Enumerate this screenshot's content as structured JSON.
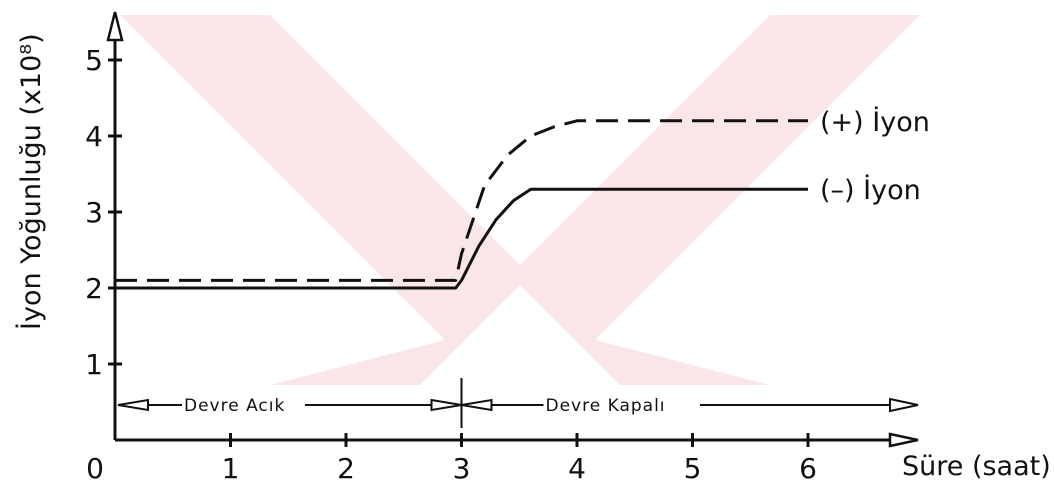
{
  "chart_data": {
    "type": "line",
    "xlabel": "Süre (saat)",
    "ylabel": "İyon Yoğunluğu (x10⁸)",
    "xlim": [
      0,
      7
    ],
    "ylim": [
      0,
      6
    ],
    "x_ticks": [
      "0",
      "1",
      "2",
      "3",
      "4",
      "5",
      "6"
    ],
    "y_ticks": [
      "1",
      "2",
      "3",
      "4",
      "5"
    ],
    "series": [
      {
        "name": "(+) İyon",
        "style": "dashed",
        "x": [
          0,
          2.95,
          3.0,
          3.2,
          3.4,
          3.6,
          3.8,
          4.0,
          4.2,
          6.0
        ],
        "y": [
          2.1,
          2.1,
          2.45,
          3.35,
          3.75,
          4.0,
          4.12,
          4.2,
          4.2,
          4.2
        ]
      },
      {
        "name": "(–) İyon",
        "style": "solid",
        "x": [
          0,
          2.95,
          3.0,
          3.15,
          3.3,
          3.45,
          3.6,
          6.0
        ],
        "y": [
          2.0,
          2.0,
          2.1,
          2.55,
          2.9,
          3.15,
          3.3,
          3.3
        ]
      }
    ],
    "annotations": {
      "open_label": "Devre Acık",
      "closed_label": "Devre Kapalı",
      "switch_time": 3
    },
    "grid": false,
    "legend": "inline-right"
  }
}
